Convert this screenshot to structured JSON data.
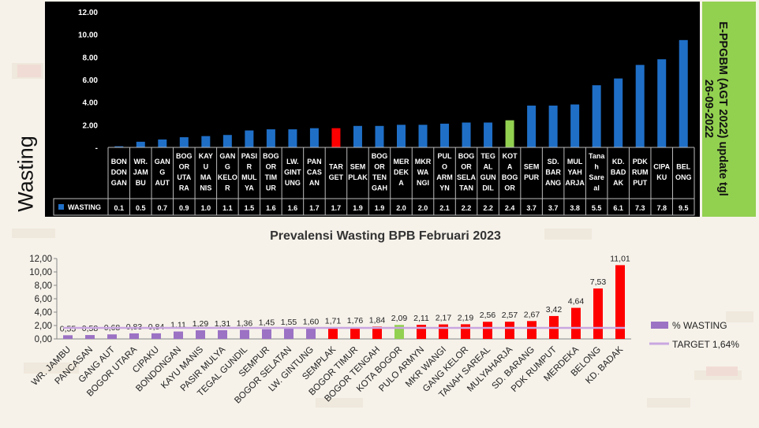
{
  "side_title": "Wasting",
  "badge_text": "E-PPGBM (AGT 2022) update tgl\n26-09-2022",
  "colors": {
    "top_default": "#1f6fc7",
    "top_target": "#ff0000",
    "top_highlight": "#92d050",
    "bottom_default": "#9b72c4",
    "bottom_above": "#ff0000",
    "bottom_highlight": "#92d050",
    "target_line": "#c9a6e0"
  },
  "chart_data": [
    {
      "type": "bar",
      "title": "",
      "series": [
        {
          "name": "WASTING",
          "categories": [
            "BON DON GAN",
            "WR. JAM BU",
            "GAN G AUT",
            "BOG OR UTA RA",
            "KAY U MA NIS",
            "GAN G KELO R",
            "PASI R MUL YA",
            "BOG OR TIM UR",
            "LW. GINT UNG",
            "PAN CAS AN",
            "TAR GET",
            "SEM PLAK",
            "BOG OR TEN GAH",
            "MER DEK A",
            "MKR WA NGI",
            "PUL O ARM YN",
            "BOG OR SELA TAN",
            "TEG AL GUN DIL",
            "KOT A BOG OR",
            "SEM PUR",
            "SD. BAR ANG",
            "MUL YAH ARJA",
            "Tana h Sare al",
            "KD. BAD AK",
            "PDK RUM PUT",
            "CIPA KU",
            "BEL ONG"
          ],
          "values": [
            0.1,
            0.5,
            0.7,
            0.9,
            1.0,
            1.1,
            1.5,
            1.6,
            1.6,
            1.7,
            1.7,
            1.9,
            1.9,
            2.0,
            2.0,
            2.1,
            2.2,
            2.2,
            2.4,
            3.7,
            3.7,
            3.8,
            5.5,
            6.1,
            7.3,
            7.8,
            9.5
          ],
          "value_labels": [
            "0.1",
            "0.5",
            "0.7",
            "0.9",
            "1.0",
            "1.1",
            "1.5",
            "1.6",
            "1.6",
            "1.7",
            "1.7",
            "1.9",
            "1.9",
            "2.0",
            "2.0",
            "2.1",
            "2.2",
            "2.2",
            "2.4",
            "3.7",
            "3.7",
            "3.8",
            "5.5",
            "6.1",
            "7.3",
            "7.8",
            "9.5"
          ]
        }
      ],
      "yticks": [
        "12.00",
        "10.00",
        "8.00",
        "6.00",
        "4.00",
        "2.00",
        "-"
      ],
      "ylim": [
        0,
        12
      ],
      "target_index": 10,
      "highlight_index": 18,
      "grid": false,
      "legend": "table-left"
    },
    {
      "type": "bar",
      "title": "Prevalensi Wasting BPB Februari 2023",
      "categories": [
        "WR. JAMBU",
        "PANCASAN",
        "GANG AUT",
        "BOGOR UTARA",
        "CIPAKU",
        "BONDONGAN",
        "KAYU MANIS",
        "PASIR MULYA",
        "TEGAL GUNDIL",
        "SEMPUR",
        "BOGOR SELATAN",
        "LW. GINTUNG",
        "SEMPLAK",
        "BOGOR TIMUR",
        "BOGOR TENGAH",
        "KOTA BOGOR",
        "PULO ARMYN",
        "MKR WANGI",
        "GANG KELOR",
        "TANAH SAREAL",
        "MULYAHARJA",
        "SD. BARANG",
        "PDK RUMPUT",
        "MERDEKA",
        "BELONG",
        "KD. BADAK"
      ],
      "series": [
        {
          "name": "% WASTING",
          "values": [
            0.55,
            0.58,
            0.68,
            0.83,
            0.84,
            1.11,
            1.29,
            1.31,
            1.36,
            1.45,
            1.55,
            1.6,
            1.71,
            1.76,
            1.84,
            2.09,
            2.11,
            2.17,
            2.19,
            2.56,
            2.57,
            2.67,
            3.42,
            4.64,
            7.53,
            11.01
          ],
          "value_labels": [
            "0,55",
            "0,58",
            "0,68",
            "0,83",
            "0,84",
            "1,11",
            "1,29",
            "1,31",
            "1,36",
            "1,45",
            "1,55",
            "1,60",
            "1,71",
            "1,76",
            "1,84",
            "2,09",
            "2,11",
            "2,17",
            "2,19",
            "2,56",
            "2,57",
            "2,67",
            "3,42",
            "4,64",
            "7,53",
            "11,01"
          ]
        },
        {
          "name": "TARGET 1,64%",
          "type": "line",
          "value": 1.64
        }
      ],
      "yticks": [
        "12,00",
        "10,00",
        "8,00",
        "6,00",
        "4,00",
        "2,00",
        "0,00"
      ],
      "ylim": [
        0,
        12
      ],
      "highlight_index": 15,
      "grid": false,
      "legend": "right"
    }
  ]
}
